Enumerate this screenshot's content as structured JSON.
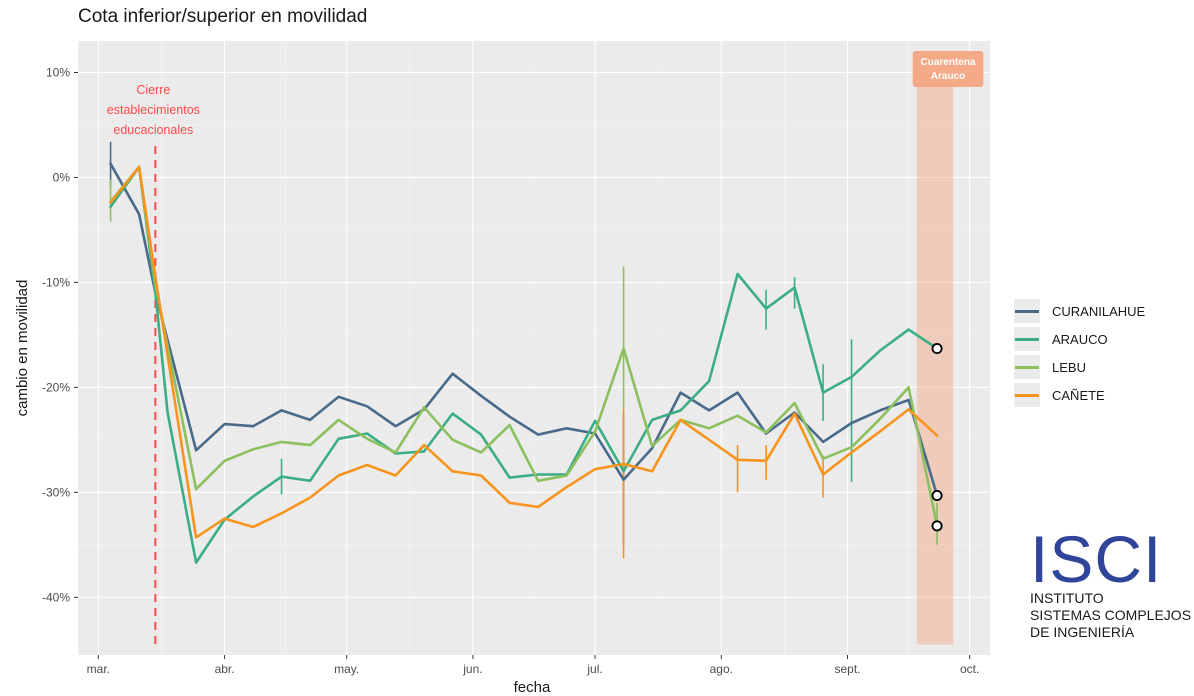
{
  "chart_data": {
    "type": "line",
    "title": "Cota inferior/superior en movilidad",
    "xlabel": "fecha",
    "ylabel": "cambio en movilidad",
    "ylim": [
      -45.5,
      13
    ],
    "xlim": [
      "2020-02-25",
      "2020-10-06"
    ],
    "y_ticks": [
      10,
      0,
      -10,
      -20,
      -30,
      -40
    ],
    "y_tick_labels": [
      "10%",
      "0%",
      "-10%",
      "-20%",
      "-30%",
      "-40%"
    ],
    "x_ticks": [
      "2020-03-01",
      "2020-04-01",
      "2020-05-01",
      "2020-06-01",
      "2020-07-01",
      "2020-08-01",
      "2020-09-01",
      "2020-10-01"
    ],
    "x_tick_labels": [
      "mar.",
      "abr.",
      "may.",
      "jun.",
      "jul.",
      "ago.",
      "sept.",
      "oct."
    ],
    "grid": true,
    "legend_position": "right",
    "annotations": {
      "school_closure": {
        "date": "2020-03-15",
        "label_lines": [
          "Cierre",
          "establecimientos",
          "educacionales"
        ],
        "color": "#ff4a4a"
      },
      "quarantine": {
        "start": "2020-09-18",
        "end": "2020-09-27",
        "label_lines": [
          "Cuarentena",
          "Arauco"
        ],
        "color": "#f4a582"
      }
    },
    "series": [
      {
        "name": "CURANILAHUE",
        "color": "#4a6a8a",
        "x": [
          "2020-03-04",
          "2020-03-11",
          "2020-03-15",
          "2020-03-25",
          "2020-04-01",
          "2020-04-08",
          "2020-04-15",
          "2020-04-22",
          "2020-04-29",
          "2020-05-06",
          "2020-05-13",
          "2020-05-20",
          "2020-05-27",
          "2020-06-03",
          "2020-06-10",
          "2020-06-17",
          "2020-06-24",
          "2020-07-01",
          "2020-07-08",
          "2020-07-15",
          "2020-07-22",
          "2020-07-29",
          "2020-08-05",
          "2020-08-12",
          "2020-08-19",
          "2020-08-26",
          "2020-09-02",
          "2020-09-09",
          "2020-09-16",
          "2020-09-23"
        ],
        "values": [
          1.3,
          -3.5,
          -11,
          -26,
          -23.5,
          -23.7,
          -22.2,
          -23.1,
          -20.9,
          -21.8,
          -23.7,
          -22.1,
          -18.7,
          -20.8,
          -22.8,
          -24.5,
          -23.9,
          -24.4,
          -28.8,
          -25.8,
          -20.5,
          -22.2,
          -20.5,
          -24.4,
          -22.4,
          -25.2,
          -23.4,
          -22.2,
          -21.2,
          -30.3
        ],
        "error_bars": [
          {
            "x": "2020-03-04",
            "low": -0.8,
            "high": 3.4
          },
          {
            "x": "2020-07-08",
            "low": -35,
            "high": -22.5
          }
        ]
      },
      {
        "name": "ARAUCO",
        "color": "#3cae86",
        "x": [
          "2020-03-04",
          "2020-03-11",
          "2020-03-15",
          "2020-03-18",
          "2020-03-25",
          "2020-04-01",
          "2020-04-08",
          "2020-04-15",
          "2020-04-22",
          "2020-04-29",
          "2020-05-06",
          "2020-05-13",
          "2020-05-20",
          "2020-05-27",
          "2020-06-03",
          "2020-06-10",
          "2020-06-17",
          "2020-06-24",
          "2020-07-01",
          "2020-07-08",
          "2020-07-15",
          "2020-07-22",
          "2020-07-29",
          "2020-08-05",
          "2020-08-12",
          "2020-08-19",
          "2020-08-26",
          "2020-09-02",
          "2020-09-09",
          "2020-09-16",
          "2020-09-23"
        ],
        "values": [
          -2.8,
          1,
          -11,
          -22.4,
          -36.7,
          -32.6,
          -30.4,
          -28.5,
          -28.9,
          -24.9,
          -24.4,
          -26.3,
          -26.1,
          -22.5,
          -24.5,
          -28.6,
          -28.3,
          -28.3,
          -23.2,
          -28,
          -23.1,
          -22.2,
          -19.4,
          -9.2,
          -12.5,
          -10.5,
          -20.5,
          -19,
          -16.5,
          -14.5,
          -16.3
        ],
        "error_bars": [
          {
            "x": "2020-04-15",
            "low": -30.2,
            "high": -26.8
          },
          {
            "x": "2020-08-12",
            "low": -14.5,
            "high": -10.7
          },
          {
            "x": "2020-08-19",
            "low": -12.5,
            "high": -9.5
          },
          {
            "x": "2020-08-26",
            "low": -23.2,
            "high": -17.8
          },
          {
            "x": "2020-09-02",
            "low": -29,
            "high": -15.4
          }
        ]
      },
      {
        "name": "LEBU",
        "color": "#8cbf5e",
        "x": [
          "2020-03-04",
          "2020-03-11",
          "2020-03-15",
          "2020-03-25",
          "2020-04-01",
          "2020-04-08",
          "2020-04-15",
          "2020-04-22",
          "2020-04-29",
          "2020-05-06",
          "2020-05-13",
          "2020-05-20",
          "2020-05-27",
          "2020-06-03",
          "2020-06-10",
          "2020-06-17",
          "2020-06-24",
          "2020-07-01",
          "2020-07-08",
          "2020-07-15",
          "2020-07-22",
          "2020-07-29",
          "2020-08-05",
          "2020-08-12",
          "2020-08-19",
          "2020-08-26",
          "2020-09-02",
          "2020-09-09",
          "2020-09-16",
          "2020-09-23"
        ],
        "values": [
          -2.3,
          1,
          -10.2,
          -29.7,
          -27,
          -25.9,
          -25.2,
          -25.5,
          -23.1,
          -24.9,
          -26.2,
          -21.9,
          -25,
          -26.2,
          -23.6,
          -28.9,
          -28.4,
          -24.2,
          -16.3,
          -25.6,
          -23.1,
          -23.9,
          -22.7,
          -24.3,
          -21.5,
          -26.8,
          -25.7,
          -23,
          -20,
          -33.2
        ],
        "error_bars": [
          {
            "x": "2020-03-04",
            "low": -4.2,
            "high": -0.2
          },
          {
            "x": "2020-07-08",
            "low": -22,
            "high": -8.5
          },
          {
            "x": "2020-09-23",
            "low": -35,
            "high": -31
          }
        ]
      },
      {
        "name": "CAÑETE",
        "color": "#f7941d",
        "x": [
          "2020-03-04",
          "2020-03-11",
          "2020-03-15",
          "2020-03-25",
          "2020-04-01",
          "2020-04-08",
          "2020-04-15",
          "2020-04-22",
          "2020-04-29",
          "2020-05-06",
          "2020-05-13",
          "2020-05-20",
          "2020-05-27",
          "2020-06-03",
          "2020-06-10",
          "2020-06-17",
          "2020-06-24",
          "2020-07-01",
          "2020-07-08",
          "2020-07-15",
          "2020-07-22",
          "2020-07-29",
          "2020-08-05",
          "2020-08-12",
          "2020-08-19",
          "2020-08-26",
          "2020-09-02",
          "2020-09-09",
          "2020-09-16",
          "2020-09-23"
        ],
        "values": [
          -2.4,
          1,
          -9.5,
          -34.3,
          -32.5,
          -33.3,
          -32,
          -30.5,
          -28.4,
          -27.4,
          -28.4,
          -25.5,
          -28,
          -28.4,
          -31,
          -31.4,
          -29.5,
          -27.8,
          -27.3,
          -28,
          -23.1,
          -25,
          -26.9,
          -27,
          -22.5,
          -28.3,
          -26.2,
          -24.2,
          -22.1,
          -24.6
        ],
        "error_bars": [
          {
            "x": "2020-07-08",
            "low": -36.3,
            "high": -22
          },
          {
            "x": "2020-08-05",
            "low": -30,
            "high": -25.5
          },
          {
            "x": "2020-08-12",
            "low": -28.8,
            "high": -25.5
          },
          {
            "x": "2020-08-26",
            "low": -30.5,
            "high": -26.5
          }
        ]
      }
    ],
    "highlighted_points": [
      {
        "series": "ARAUCO",
        "x": "2020-09-23",
        "y": -16.3
      },
      {
        "series": "CURANILAHUE",
        "x": "2020-09-23",
        "y": -30.3
      },
      {
        "series": "LEBU",
        "x": "2020-09-23",
        "y": -33.2
      }
    ]
  },
  "logo": {
    "mark": "ISCI",
    "lines": [
      "INSTITUTO",
      "SISTEMAS COMPLEJOS",
      "DE INGENIERÍA"
    ]
  }
}
